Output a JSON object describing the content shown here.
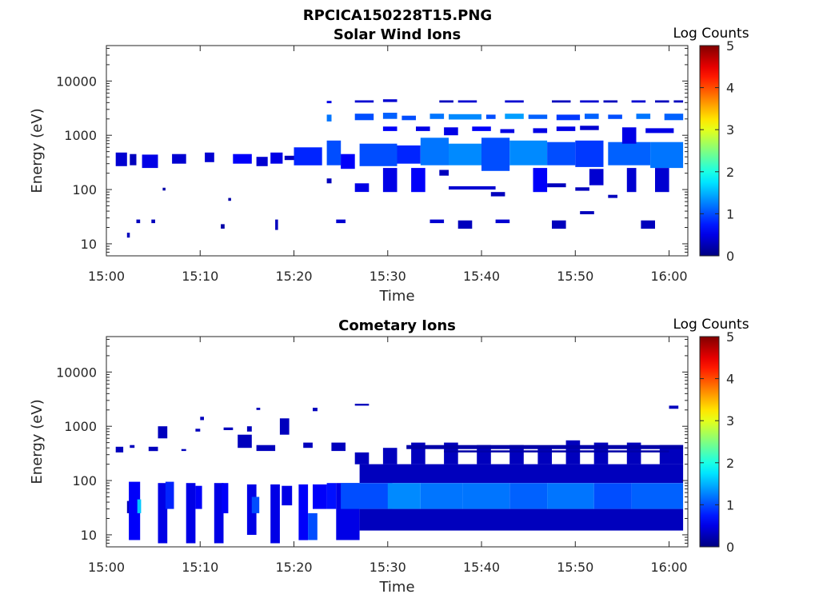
{
  "figure_title": "RPCICA150228T15.PNG",
  "chart_data": [
    {
      "type": "heatmap",
      "title": "Solar Wind Ions",
      "xlabel": "Time",
      "ylabel": "Energy (eV)",
      "x_range_min": [
        0,
        62
      ],
      "x_ticks": [
        0,
        10,
        20,
        30,
        40,
        50,
        60
      ],
      "x_tick_labels": [
        "15:00",
        "15:10",
        "15:20",
        "15:30",
        "15:40",
        "15:50",
        "16:00"
      ],
      "y_scale": "log",
      "y_range_eV": [
        6,
        45000
      ],
      "y_ticks": [
        10,
        100,
        1000,
        10000
      ],
      "y_tick_labels": [
        "10",
        "100",
        "1000",
        "10000"
      ],
      "colorbar": {
        "label": "Log Counts",
        "range": [
          0,
          5
        ],
        "ticks": [
          0,
          1,
          2,
          3,
          4,
          5
        ],
        "colormap": "jet"
      },
      "blocks": [
        [
          1.0,
          2.2,
          270,
          480,
          0.4
        ],
        [
          2.5,
          3.2,
          280,
          450,
          0.3
        ],
        [
          3.8,
          5.5,
          250,
          440,
          0.5
        ],
        [
          7.0,
          8.5,
          300,
          450,
          0.4
        ],
        [
          10.5,
          11.5,
          320,
          480,
          0.4
        ],
        [
          13.5,
          15.5,
          300,
          450,
          0.6
        ],
        [
          16.0,
          17.2,
          270,
          400,
          0.4
        ],
        [
          17.5,
          18.8,
          300,
          480,
          0.5
        ],
        [
          19.0,
          20.0,
          350,
          420,
          0.3
        ],
        [
          20.0,
          23.0,
          280,
          600,
          0.8
        ],
        [
          23.5,
          25.0,
          280,
          800,
          1.0
        ],
        [
          25.0,
          26.5,
          240,
          450,
          0.6
        ],
        [
          27.0,
          31.0,
          270,
          700,
          1.0
        ],
        [
          31.0,
          33.5,
          300,
          650,
          0.8
        ],
        [
          33.5,
          36.5,
          280,
          900,
          1.2
        ],
        [
          36.5,
          40.0,
          280,
          700,
          1.3
        ],
        [
          40.0,
          43.0,
          220,
          900,
          1.0
        ],
        [
          43.0,
          47.0,
          280,
          800,
          1.3
        ],
        [
          47.0,
          50.0,
          280,
          750,
          1.0
        ],
        [
          50.0,
          53.0,
          260,
          800,
          0.9
        ],
        [
          53.5,
          58.0,
          280,
          750,
          1.1
        ],
        [
          58.0,
          61.5,
          250,
          750,
          1.2
        ],
        [
          23.5,
          24.0,
          1800,
          2400,
          1.2
        ],
        [
          26.5,
          28.5,
          1900,
          2500,
          1.0
        ],
        [
          29.5,
          31.0,
          2000,
          2600,
          1.1
        ],
        [
          31.5,
          33.0,
          1900,
          2300,
          1.0
        ],
        [
          34.5,
          36.0,
          2000,
          2500,
          1.2
        ],
        [
          36.5,
          40.0,
          1950,
          2450,
          1.3
        ],
        [
          40.5,
          41.5,
          2000,
          2400,
          1.0
        ],
        [
          42.5,
          44.5,
          2000,
          2500,
          1.4
        ],
        [
          45.0,
          47.0,
          2000,
          2400,
          1.1
        ],
        [
          48.0,
          50.5,
          1900,
          2400,
          0.9
        ],
        [
          51.0,
          52.5,
          2000,
          2500,
          1.1
        ],
        [
          53.5,
          55.0,
          2000,
          2400,
          1.0
        ],
        [
          56.5,
          58.0,
          2000,
          2500,
          1.2
        ],
        [
          59.5,
          61.5,
          1900,
          2500,
          1.1
        ],
        [
          23.5,
          24.0,
          3900,
          4300,
          0.5
        ],
        [
          26.5,
          28.5,
          4000,
          4400,
          0.4
        ],
        [
          29.5,
          31.0,
          4100,
          4600,
          0.4
        ],
        [
          35.5,
          37.0,
          4000,
          4400,
          0.3
        ],
        [
          37.5,
          39.5,
          4000,
          4400,
          0.4
        ],
        [
          42.5,
          44.5,
          4000,
          4400,
          0.4
        ],
        [
          47.5,
          49.5,
          4000,
          4400,
          0.3
        ],
        [
          50.5,
          52.5,
          4000,
          4400,
          0.4
        ],
        [
          53.0,
          54.5,
          4000,
          4400,
          0.3
        ],
        [
          56.0,
          57.5,
          4000,
          4400,
          0.4
        ],
        [
          58.5,
          60.0,
          4000,
          4400,
          0.3
        ],
        [
          60.5,
          61.5,
          4000,
          4400,
          0.3
        ],
        [
          29.5,
          31.0,
          1200,
          1450,
          0.6
        ],
        [
          33.0,
          34.5,
          1200,
          1450,
          0.5
        ],
        [
          36.0,
          37.5,
          1000,
          1400,
          0.5
        ],
        [
          39.0,
          41.0,
          1200,
          1450,
          0.6
        ],
        [
          42.0,
          43.5,
          1100,
          1300,
          0.5
        ],
        [
          45.5,
          47.0,
          1100,
          1350,
          0.5
        ],
        [
          48.0,
          50.0,
          1200,
          1450,
          0.5
        ],
        [
          50.5,
          52.5,
          1250,
          1500,
          0.4
        ],
        [
          55.0,
          56.5,
          700,
          1400,
          0.5
        ],
        [
          57.5,
          60.5,
          1100,
          1350,
          0.5
        ],
        [
          23.5,
          24.0,
          130,
          160,
          0.3
        ],
        [
          26.5,
          28.0,
          90,
          130,
          0.5
        ],
        [
          29.5,
          31.0,
          90,
          250,
          0.5
        ],
        [
          32.5,
          34.0,
          90,
          250,
          0.6
        ],
        [
          35.5,
          36.5,
          180,
          230,
          0.3
        ],
        [
          36.5,
          41.5,
          100,
          115,
          0.4
        ],
        [
          41.0,
          42.5,
          75,
          90,
          0.3
        ],
        [
          45.5,
          47.0,
          90,
          250,
          0.6
        ],
        [
          47.0,
          49.0,
          110,
          130,
          0.3
        ],
        [
          50.0,
          51.5,
          95,
          110,
          0.3
        ],
        [
          51.5,
          53.0,
          120,
          240,
          0.4
        ],
        [
          53.5,
          54.5,
          70,
          80,
          0.3
        ],
        [
          55.5,
          56.5,
          90,
          250,
          0.4
        ],
        [
          58.5,
          60.0,
          90,
          250,
          0.4
        ],
        [
          2.2,
          2.5,
          13,
          16,
          0.3
        ],
        [
          3.2,
          3.6,
          24,
          28,
          0.3
        ],
        [
          4.8,
          5.2,
          24,
          28,
          0.3
        ],
        [
          6.0,
          6.3,
          96,
          108,
          0.2
        ],
        [
          12.2,
          12.6,
          19,
          23,
          0.2
        ],
        [
          13.0,
          13.3,
          62,
          70,
          0.2
        ],
        [
          18.0,
          18.3,
          18,
          28,
          0.3
        ],
        [
          24.5,
          25.5,
          24,
          28,
          0.4
        ],
        [
          34.5,
          36.0,
          24,
          28,
          0.4
        ],
        [
          37.5,
          39.0,
          19,
          27,
          0.3
        ],
        [
          41.5,
          43.0,
          24,
          28,
          0.4
        ],
        [
          47.5,
          49.0,
          19,
          27,
          0.3
        ],
        [
          50.5,
          52.0,
          35,
          40,
          0.3
        ],
        [
          57.0,
          58.5,
          19,
          27,
          0.3
        ]
      ]
    },
    {
      "type": "heatmap",
      "title": "Cometary Ions",
      "xlabel": "Time",
      "ylabel": "Energy (eV)",
      "x_range_min": [
        0,
        62
      ],
      "x_ticks": [
        0,
        10,
        20,
        30,
        40,
        50,
        60
      ],
      "x_tick_labels": [
        "15:00",
        "15:10",
        "15:20",
        "15:30",
        "15:40",
        "15:50",
        "16:00"
      ],
      "y_scale": "log",
      "y_range_eV": [
        6,
        45000
      ],
      "y_ticks": [
        10,
        100,
        1000,
        10000
      ],
      "y_tick_labels": [
        "10",
        "100",
        "1000",
        "10000"
      ],
      "colorbar": {
        "label": "Log Counts",
        "range": [
          0,
          5
        ],
        "ticks": [
          0,
          1,
          2,
          3,
          4,
          5
        ],
        "colormap": "jet"
      },
      "blocks": [
        [
          2.2,
          2.6,
          25,
          42,
          0.3
        ],
        [
          2.4,
          3.6,
          8,
          95,
          0.6
        ],
        [
          3.3,
          3.7,
          25,
          45,
          1.6
        ],
        [
          5.5,
          6.5,
          7,
          90,
          0.5
        ],
        [
          6.3,
          7.2,
          30,
          95,
          0.8
        ],
        [
          8.5,
          9.5,
          7,
          90,
          0.5
        ],
        [
          9.5,
          10.2,
          30,
          80,
          0.6
        ],
        [
          11.5,
          12.5,
          7,
          90,
          0.5
        ],
        [
          12.3,
          13.0,
          25,
          90,
          0.6
        ],
        [
          15.0,
          16.0,
          10,
          85,
          0.5
        ],
        [
          15.5,
          16.3,
          25,
          50,
          1.0
        ],
        [
          17.5,
          18.5,
          7,
          85,
          0.5
        ],
        [
          18.7,
          19.8,
          35,
          80,
          0.5
        ],
        [
          20.5,
          21.5,
          8,
          85,
          0.6
        ],
        [
          21.5,
          22.5,
          8,
          25,
          1.0
        ],
        [
          22.0,
          23.5,
          30,
          85,
          0.6
        ],
        [
          23.5,
          24.5,
          30,
          90,
          0.7
        ],
        [
          24.5,
          27.0,
          8,
          90,
          0.5
        ],
        [
          25.0,
          30.5,
          30,
          90,
          1.0
        ],
        [
          30.0,
          33.5,
          30,
          90,
          1.3
        ],
        [
          33.5,
          38.0,
          30,
          90,
          1.2
        ],
        [
          38.0,
          43.0,
          30,
          90,
          1.2
        ],
        [
          43.0,
          47.0,
          30,
          90,
          1.1
        ],
        [
          47.0,
          52.0,
          30,
          90,
          1.2
        ],
        [
          52.0,
          56.0,
          30,
          90,
          1.0
        ],
        [
          56.0,
          61.5,
          30,
          90,
          1.1
        ],
        [
          27.0,
          61.5,
          12,
          30,
          0.3
        ],
        [
          27.0,
          61.5,
          90,
          200,
          0.3
        ],
        [
          26.5,
          28.0,
          200,
          330,
          0.3
        ],
        [
          29.5,
          31.0,
          200,
          400,
          0.3
        ],
        [
          32.5,
          34.0,
          200,
          500,
          0.3
        ],
        [
          36.0,
          37.5,
          200,
          500,
          0.3
        ],
        [
          39.5,
          41.0,
          200,
          450,
          0.3
        ],
        [
          43.0,
          44.5,
          200,
          450,
          0.3
        ],
        [
          46.0,
          47.5,
          200,
          400,
          0.3
        ],
        [
          49.0,
          50.5,
          200,
          550,
          0.3
        ],
        [
          52.0,
          53.5,
          200,
          500,
          0.3
        ],
        [
          55.5,
          57.0,
          200,
          500,
          0.3
        ],
        [
          59.0,
          61.5,
          200,
          450,
          0.3
        ],
        [
          32.0,
          61.5,
          380,
          450,
          0.2
        ],
        [
          36.0,
          60.0,
          330,
          360,
          0.2
        ],
        [
          1.0,
          1.8,
          330,
          420,
          0.3
        ],
        [
          2.5,
          3.0,
          400,
          450,
          0.3
        ],
        [
          4.5,
          5.5,
          350,
          420,
          0.3
        ],
        [
          5.5,
          6.5,
          600,
          1000,
          0.3
        ],
        [
          8.0,
          8.5,
          350,
          380,
          0.3
        ],
        [
          9.5,
          10.0,
          800,
          900,
          0.3
        ],
        [
          12.5,
          13.5,
          850,
          950,
          0.3
        ],
        [
          14.0,
          15.5,
          400,
          700,
          0.3
        ],
        [
          15.0,
          15.5,
          800,
          1000,
          0.3
        ],
        [
          16.0,
          18.0,
          350,
          450,
          0.3
        ],
        [
          18.5,
          19.5,
          700,
          1400,
          0.3
        ],
        [
          21.0,
          22.0,
          400,
          500,
          0.3
        ],
        [
          24.0,
          25.5,
          350,
          500,
          0.3
        ],
        [
          10.0,
          10.4,
          1300,
          1500,
          0.3
        ],
        [
          16.0,
          16.4,
          2000,
          2200,
          0.3
        ],
        [
          22.0,
          22.5,
          1900,
          2200,
          0.3
        ],
        [
          26.5,
          28.0,
          2400,
          2600,
          0.3
        ],
        [
          60.0,
          61.0,
          2100,
          2400,
          0.3
        ]
      ]
    }
  ]
}
